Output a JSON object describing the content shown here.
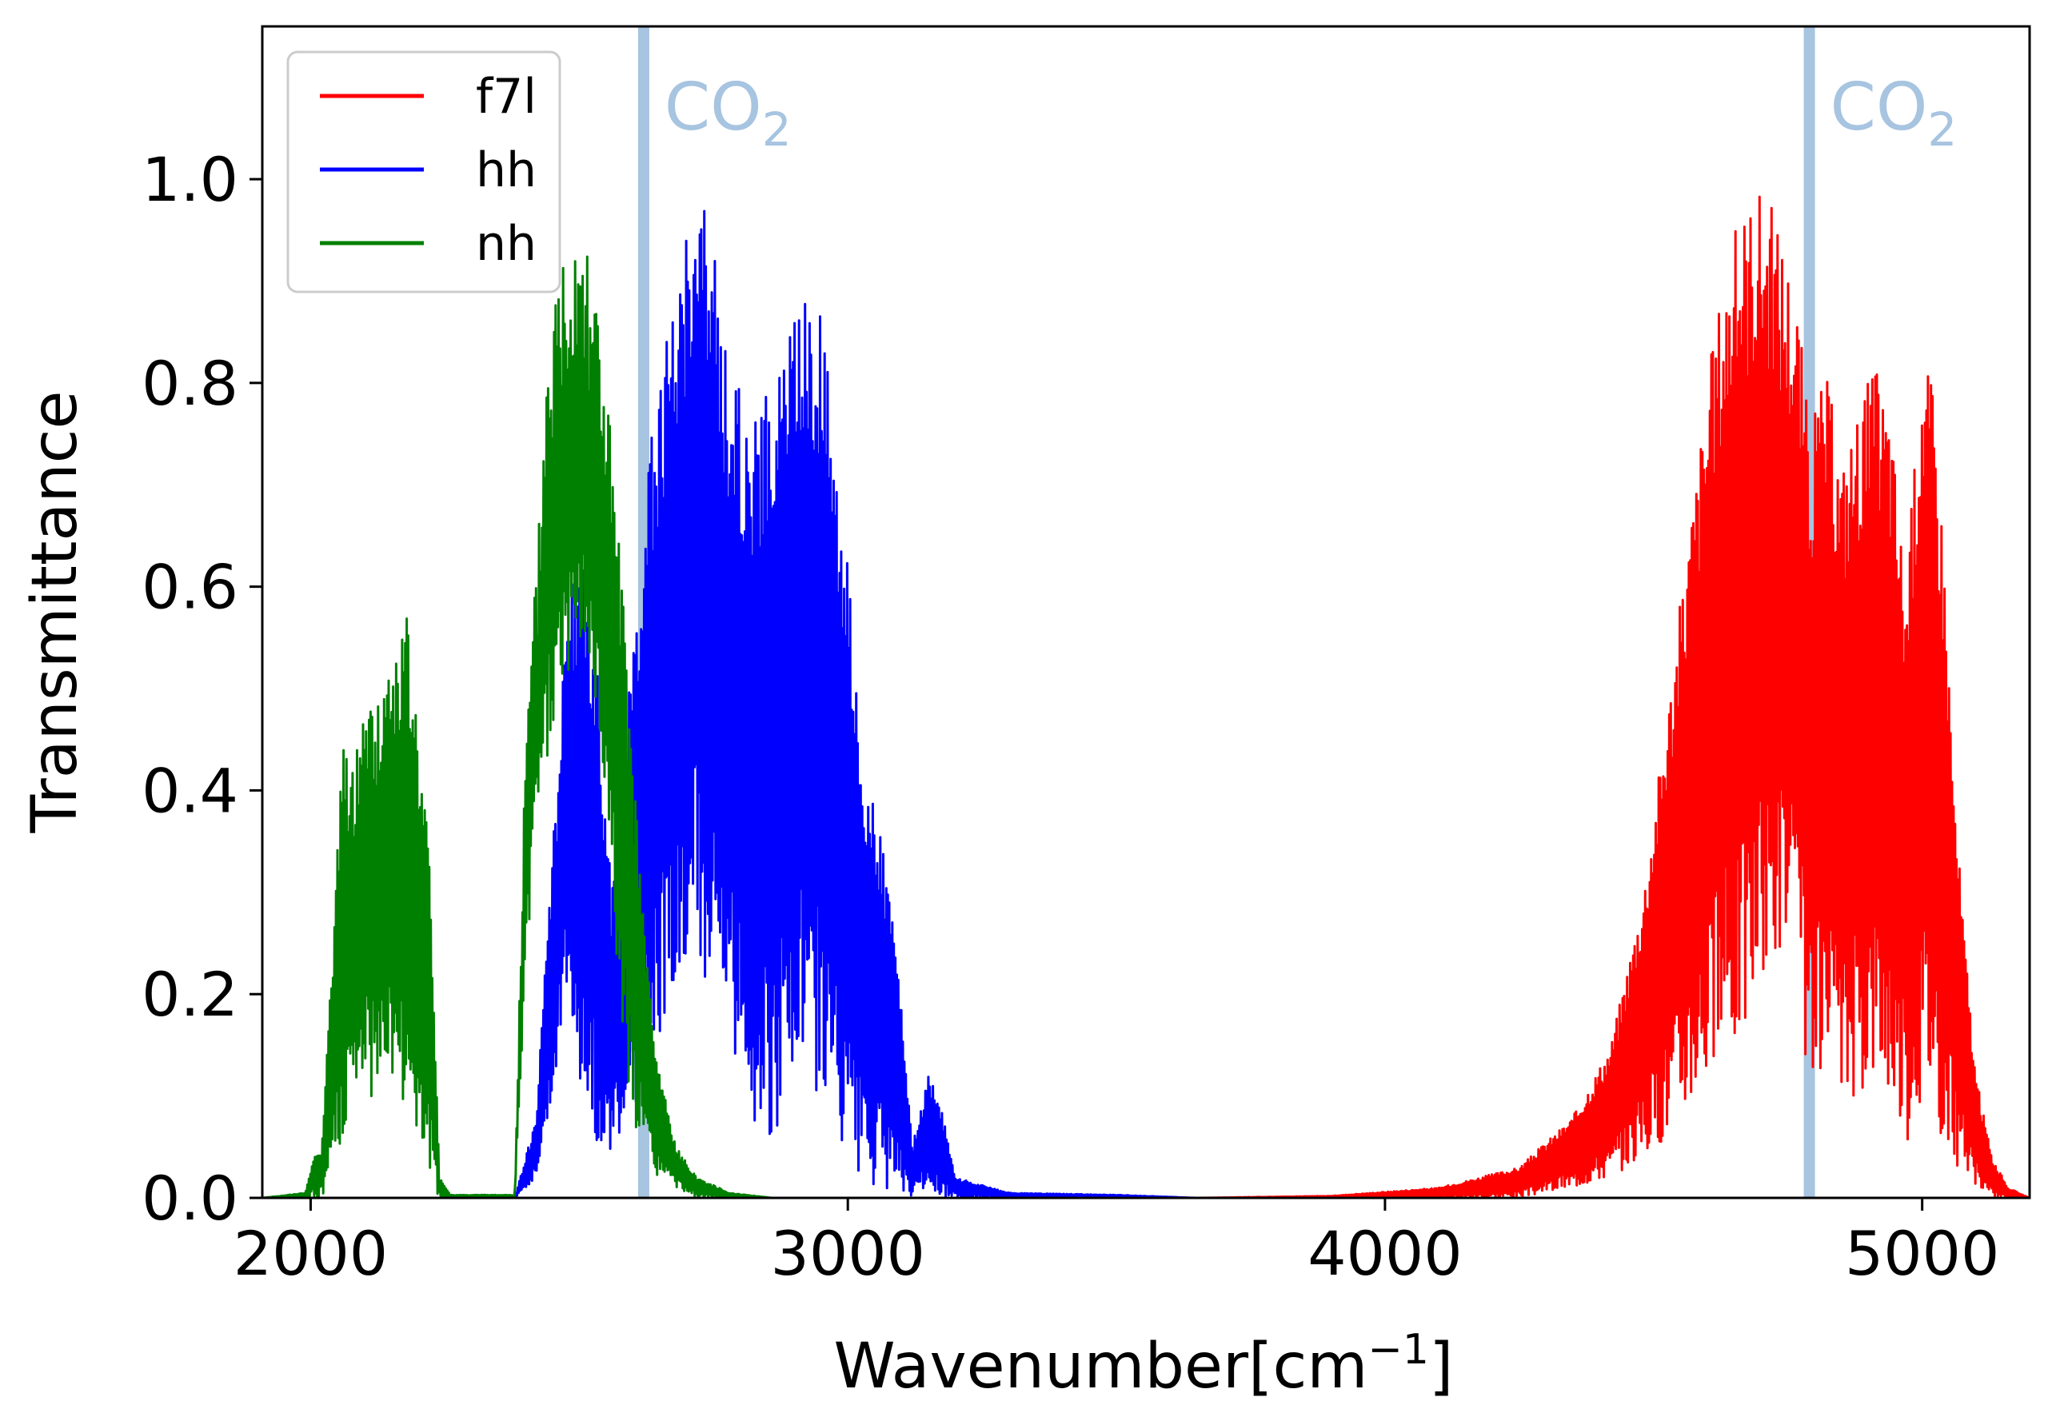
{
  "chart_data": {
    "type": "line",
    "title": "",
    "xlabel": "Wavenumber[cm",
    "xlabel_sup": "−1",
    "xlabel_suffix": "]",
    "ylabel": "Transmittance",
    "xlim": [
      1910,
      5200
    ],
    "ylim": [
      0,
      1.15
    ],
    "x_ticks": [
      2000,
      3000,
      4000,
      5000
    ],
    "x_tick_labels": [
      "2000",
      "3000",
      "4000",
      "5000"
    ],
    "y_ticks": [
      0.0,
      0.2,
      0.4,
      0.6,
      0.8,
      1.0
    ],
    "y_tick_labels": [
      "0.0",
      "0.2",
      "0.4",
      "0.6",
      "0.8",
      "1.0"
    ],
    "grid": false,
    "legend_position": "top-left",
    "series": [
      {
        "name": "f7l",
        "color": "#ff0000",
        "x": [
          3650,
          3900,
          4100,
          4250,
          4350,
          4420,
          4480,
          4530,
          4580,
          4620,
          4660,
          4700,
          4740,
          4770,
          4790,
          4820,
          4850,
          4880,
          4910,
          4940,
          4970,
          5000,
          5020,
          5040,
          5060,
          5080,
          5100,
          5130,
          5160,
          5200
        ],
        "y": [
          0.0,
          0.002,
          0.01,
          0.03,
          0.08,
          0.15,
          0.3,
          0.5,
          0.72,
          0.88,
          0.97,
          1.0,
          0.95,
          0.88,
          0.75,
          0.82,
          0.72,
          0.78,
          0.82,
          0.78,
          0.6,
          0.84,
          0.8,
          0.65,
          0.4,
          0.25,
          0.12,
          0.04,
          0.01,
          0.0
        ],
        "envelope_min": [
          0.0,
          0.0,
          0.0,
          0.0,
          0.01,
          0.02,
          0.04,
          0.06,
          0.1,
          0.12,
          0.15,
          0.2,
          0.25,
          0.2,
          0.1,
          0.1,
          0.08,
          0.1,
          0.12,
          0.1,
          0.05,
          0.1,
          0.1,
          0.05,
          0.03,
          0.02,
          0.01,
          0.0,
          0.0,
          0.0
        ]
      },
      {
        "name": "hh",
        "color": "#0000ff",
        "x": [
          2380,
          2420,
          2450,
          2480,
          2500,
          2530,
          2560,
          2600,
          2640,
          2680,
          2710,
          2740,
          2780,
          2820,
          2860,
          2900,
          2930,
          2960,
          3000,
          3030,
          3060,
          3090,
          3120,
          3150,
          3170,
          3200,
          3300,
          3500,
          3650
        ],
        "y": [
          0.0,
          0.08,
          0.35,
          0.6,
          0.64,
          0.55,
          0.3,
          0.55,
          0.78,
          0.9,
          1.0,
          0.97,
          0.82,
          0.76,
          0.8,
          0.88,
          0.9,
          0.85,
          0.62,
          0.42,
          0.36,
          0.25,
          0.05,
          0.12,
          0.1,
          0.02,
          0.005,
          0.003,
          0.0
        ],
        "envelope_min": [
          0.0,
          0.02,
          0.1,
          0.2,
          0.1,
          0.05,
          0.03,
          0.08,
          0.15,
          0.2,
          0.25,
          0.2,
          0.15,
          0.08,
          0.05,
          0.1,
          0.12,
          0.08,
          0.02,
          0.01,
          0.01,
          0.0,
          0.0,
          0.01,
          0.0,
          0.0,
          0.0,
          0.0,
          0.0
        ]
      },
      {
        "name": "nh",
        "color": "#008000",
        "x": [
          1910,
          1990,
          2005,
          2020,
          2040,
          2060,
          2080,
          2100,
          2120,
          2140,
          2160,
          2180,
          2200,
          2220,
          2240,
          2260,
          2380,
          2400,
          2420,
          2440,
          2470,
          2500,
          2520,
          2550,
          2580,
          2610,
          2640,
          2680,
          2720,
          2780,
          2860
        ],
        "y": [
          0.0,
          0.005,
          0.04,
          0.05,
          0.24,
          0.45,
          0.42,
          0.5,
          0.48,
          0.52,
          0.55,
          0.57,
          0.46,
          0.35,
          0.02,
          0.003,
          0.003,
          0.45,
          0.62,
          0.85,
          0.95,
          1.0,
          0.96,
          0.82,
          0.6,
          0.35,
          0.15,
          0.05,
          0.02,
          0.005,
          0.0
        ],
        "envelope_min": [
          0.0,
          0.0,
          0.0,
          0.0,
          0.02,
          0.05,
          0.08,
          0.1,
          0.1,
          0.12,
          0.1,
          0.08,
          0.05,
          0.02,
          0.0,
          0.0,
          0.0,
          0.2,
          0.38,
          0.42,
          0.5,
          0.55,
          0.5,
          0.38,
          0.15,
          0.05,
          0.02,
          0.01,
          0.0,
          0.0,
          0.0
        ]
      }
    ],
    "bands": [
      {
        "x": 2620,
        "label": "CO",
        "subscript": "2",
        "color": "#a7c4e0"
      },
      {
        "x": 4790,
        "label": "CO",
        "subscript": "2",
        "color": "#a7c4e0"
      }
    ]
  }
}
